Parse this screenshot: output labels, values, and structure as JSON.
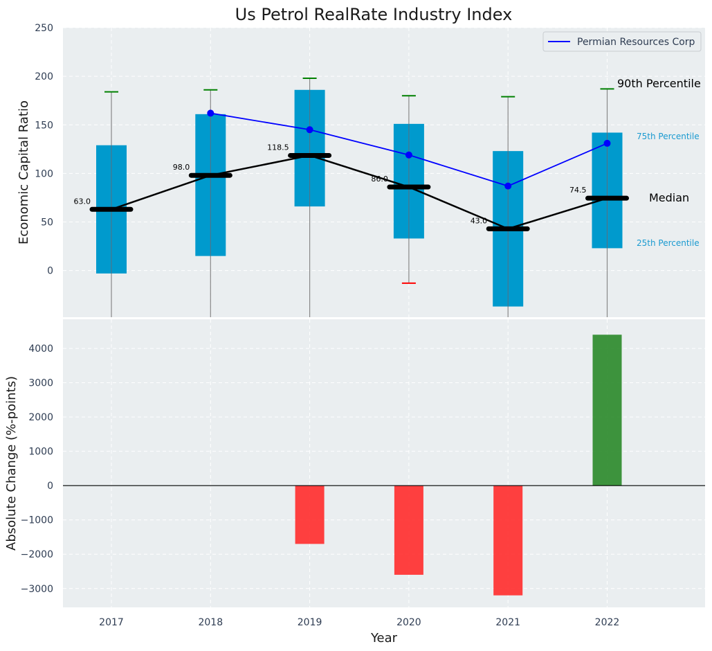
{
  "chart_data": [
    {
      "type": "box",
      "title": "Us Petrol RealRate Industry Index",
      "ylabel": "Economic Capital Ratio",
      "ylim": [
        -48,
        250
      ],
      "yticks": [
        0,
        50,
        100,
        150,
        200,
        250
      ],
      "categories": [
        "2017",
        "2018",
        "2019",
        "2020",
        "2021",
        "2022"
      ],
      "p90": [
        184,
        186,
        198,
        180,
        179,
        187
      ],
      "p75": [
        129,
        161,
        186,
        151,
        123,
        142
      ],
      "median": [
        63.0,
        98.0,
        118.5,
        86.0,
        43.0,
        74.5
      ],
      "median_labels": [
        "63.0",
        "98.0",
        "118.5",
        "86.0",
        "43.0",
        "74.5"
      ],
      "p25": [
        -3,
        15,
        66,
        33,
        -37,
        23
      ],
      "p10": [
        null,
        null,
        null,
        -13,
        null,
        null
      ],
      "series": [
        {
          "name": "Permian Resources Corp",
          "values": [
            null,
            162,
            145,
            119,
            87,
            131
          ]
        }
      ],
      "legend": "top-right",
      "annotations": {
        "p90": "90th Percentile",
        "p75": "75th Percentile",
        "median": "Median",
        "p25": "25th Percentile"
      },
      "colors": {
        "box": "#009acd",
        "median_line": "#000000",
        "series_line": "#0000ff",
        "whisker_top": "#008000",
        "whisker_bottom": "#ff0000",
        "background": "#eaeef0",
        "annotation_blue": "#1a9ad0"
      },
      "grid": true
    },
    {
      "type": "bar",
      "xlabel": "Year",
      "ylabel": "Absolute Change (%-points)",
      "ylim": [
        -3550,
        4850
      ],
      "yticks": [
        -3000,
        -2000,
        -1000,
        0,
        1000,
        2000,
        3000,
        4000
      ],
      "categories": [
        "2017",
        "2018",
        "2019",
        "2020",
        "2021",
        "2022"
      ],
      "values": [
        0,
        0,
        -1700,
        -2600,
        -3200,
        4400
      ],
      "colors": {
        "positive": "#2e8b2e",
        "negative": "#ff3030",
        "zero_line": "#000000"
      },
      "grid": true
    }
  ]
}
